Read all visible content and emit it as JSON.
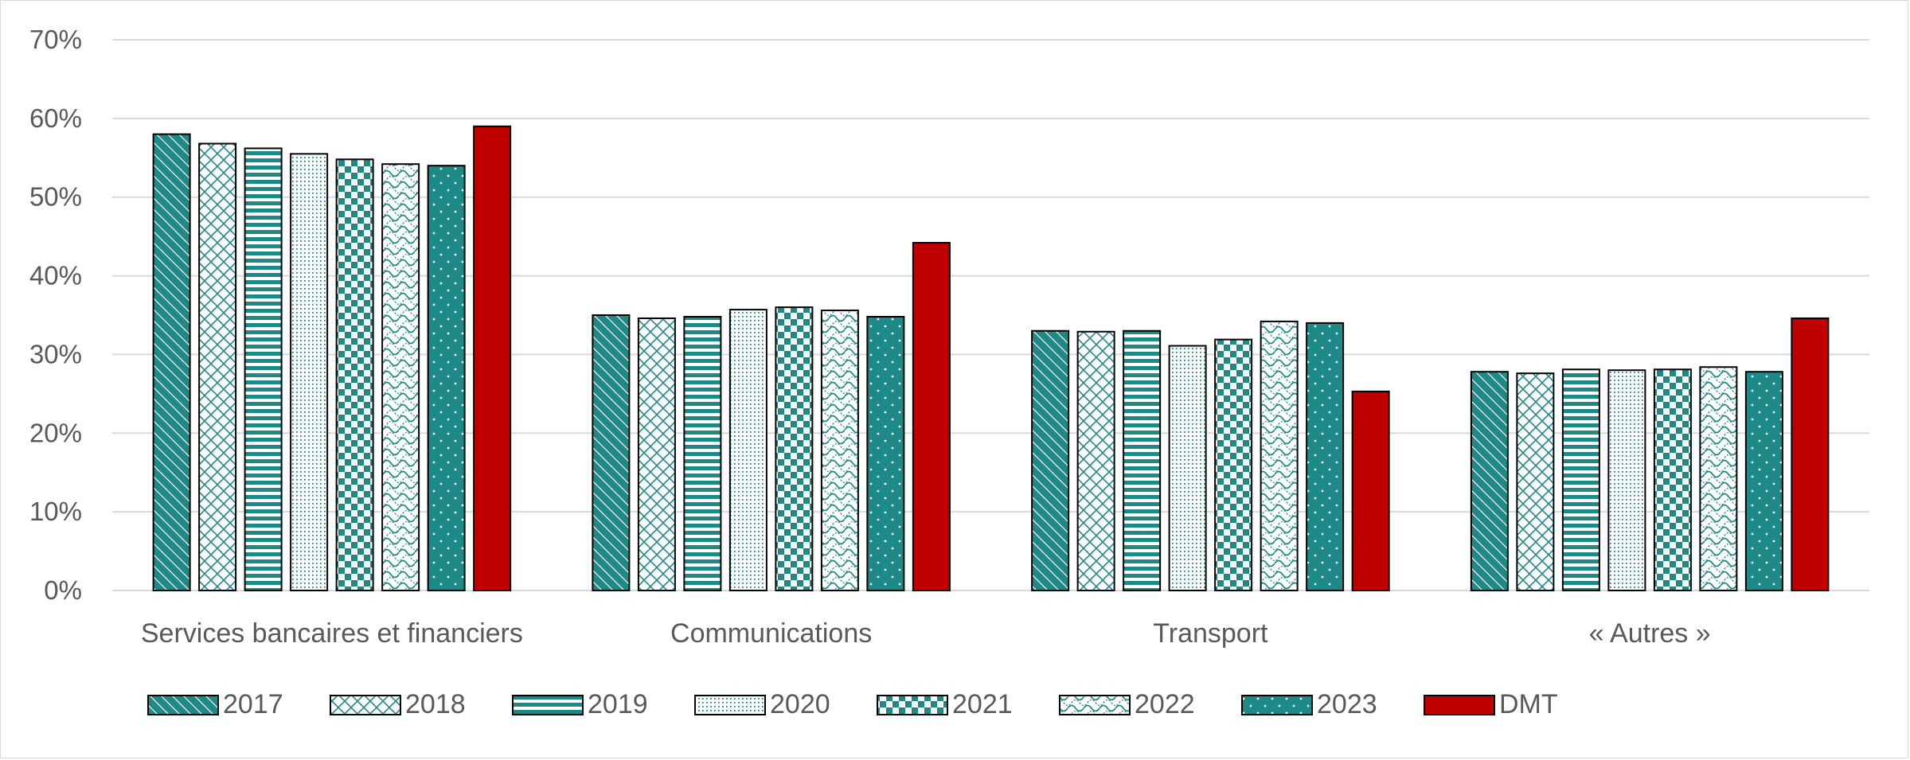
{
  "chart_data": {
    "type": "bar",
    "categories": [
      "Services bancaires et financiers",
      "Communications",
      "Transport",
      "« Autres »"
    ],
    "series": [
      {
        "name": "2017",
        "pattern": "diagonal-stripes",
        "values": [
          58.0,
          35.0,
          33.0,
          27.8
        ]
      },
      {
        "name": "2018",
        "pattern": "diamond-lattice",
        "values": [
          56.8,
          34.6,
          32.9,
          27.6
        ]
      },
      {
        "name": "2019",
        "pattern": "horizontal-stripes",
        "values": [
          56.2,
          34.8,
          33.0,
          28.1
        ]
      },
      {
        "name": "2020",
        "pattern": "fine-dots",
        "values": [
          55.5,
          35.7,
          31.1,
          28.0
        ]
      },
      {
        "name": "2021",
        "pattern": "checkerboard",
        "values": [
          54.8,
          36.0,
          31.9,
          28.1
        ]
      },
      {
        "name": "2022",
        "pattern": "wave-lattice",
        "values": [
          54.2,
          35.6,
          34.2,
          28.4
        ]
      },
      {
        "name": "2023",
        "pattern": "solid-teal-dots",
        "values": [
          54.0,
          34.8,
          34.0,
          27.8
        ]
      },
      {
        "name": "DMT",
        "pattern": "solid-red",
        "values": [
          59.0,
          44.2,
          25.3,
          34.6
        ]
      }
    ],
    "y_ticks": [
      "0%",
      "10%",
      "20%",
      "30%",
      "40%",
      "50%",
      "60%",
      "70%"
    ],
    "ylim": [
      0,
      70
    ],
    "y_unit": "%",
    "grid": true,
    "legend_position": "bottom",
    "colors": {
      "teal": "#1e8a87",
      "red": "#c00000",
      "grid": "#d9d9d9",
      "text": "#595959",
      "outline": "#000000"
    }
  }
}
